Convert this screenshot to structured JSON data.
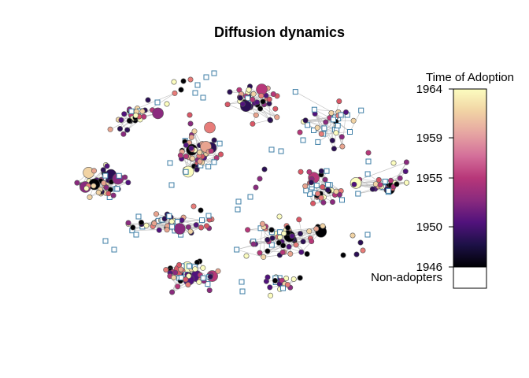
{
  "title": "Diffusion dynamics",
  "legend": {
    "title": "Time of Adoption",
    "ticks": [
      "1964",
      "1959",
      "1955",
      "1950",
      "1946"
    ],
    "non_adopters_label": "Non-adopters",
    "gradient_stops": [
      "#fcfdbf",
      "#f1d3a4",
      "#e6a5a2",
      "#d4709a",
      "#b73779",
      "#8a2a7e",
      "#51127c",
      "#1d1147",
      "#000004"
    ],
    "non_adopter_fill": "#ffffff"
  },
  "colors": {
    "edge": "#bdbdbd",
    "node_stroke": "#555555",
    "non_adopter_stroke": "#3d7ea6",
    "palette": [
      "#fcfdbf",
      "#f1d3a4",
      "#e8a48f",
      "#e77c79",
      "#d95766",
      "#b73779",
      "#8a2a7e",
      "#51127c",
      "#2b0f54",
      "#000004"
    ]
  }
}
